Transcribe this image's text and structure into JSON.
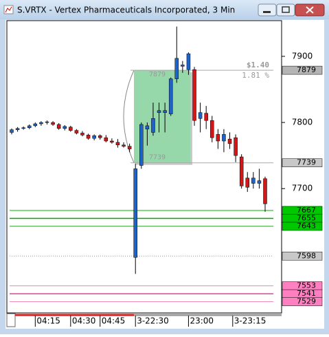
{
  "chart_data": {
    "type": "candlestick",
    "title": "S.VRTX - Vertex Pharmaceuticals Incorporated, 3 Min",
    "up_color": "#1e64c8",
    "down_color": "#d01818",
    "open": [
      7785,
      7789,
      7791,
      7792,
      7795,
      7798,
      7800,
      7800,
      7797,
      7791,
      7793,
      7788,
      7784,
      7781,
      7776,
      7780,
      7777,
      7772,
      7770,
      7766,
      7764,
      7596,
      7735,
      7790,
      7785,
      7815,
      7815,
      7813,
      7866,
      7885,
      7880,
      7880,
      7806,
      7814,
      7803,
      7782,
      7772,
      7775,
      7777,
      7748,
      7716,
      7708,
      7708,
      7715
    ],
    "high": [
      7791,
      7793,
      7794,
      7797,
      7800,
      7802,
      7803,
      7802,
      7799,
      7796,
      7795,
      7790,
      7787,
      7783,
      7782,
      7782,
      7781,
      7776,
      7775,
      7770,
      7768,
      7738,
      7800,
      7800,
      7830,
      7830,
      7830,
      7868,
      7945,
      7893,
      7906,
      7884,
      7830,
      7825,
      7810,
      7790,
      7790,
      7785,
      7782,
      7752,
      7725,
      7725,
      7730,
      7718
    ],
    "low": [
      7782,
      7786,
      7789,
      7790,
      7793,
      7795,
      7797,
      7795,
      7789,
      7788,
      7786,
      7782,
      7779,
      7774,
      7773,
      7774,
      7770,
      7768,
      7762,
      7762,
      7755,
      7571,
      7730,
      7765,
      7780,
      7785,
      7785,
      7810,
      7860,
      7875,
      7872,
      7795,
      7785,
      7790,
      7770,
      7760,
      7755,
      7760,
      7740,
      7700,
      7695,
      7700,
      7700,
      7665
    ],
    "close": [
      7789,
      7791,
      7792,
      7795,
      7798,
      7800,
      7801,
      7797,
      7791,
      7794,
      7788,
      7784,
      7781,
      7776,
      7780,
      7777,
      7772,
      7770,
      7766,
      7764,
      7760,
      7730,
      7797,
      7795,
      7806,
      7818,
      7818,
      7866,
      7897,
      7887,
      7904,
      7803,
      7815,
      7803,
      7777,
      7772,
      7782,
      7768,
      7750,
      7704,
      7702,
      7716,
      7712,
      7677
    ],
    "ylim": [
      7512,
      7954
    ],
    "yticks": [
      7900,
      7800,
      7700
    ],
    "xticks": [
      {
        "value": 4,
        "label": "04:15"
      },
      {
        "value": 10,
        "label": "04:30"
      },
      {
        "value": 15,
        "label": "04:45"
      },
      {
        "value": 21,
        "label": "3-22:30"
      },
      {
        "value": 30,
        "label": "23:00"
      },
      {
        "value": 37.5,
        "label": "3-23:15"
      }
    ],
    "levels": [
      {
        "value": 7879,
        "color": "#a8a8a8",
        "box": "#b4b4b4",
        "span": "right"
      },
      {
        "value": 7739,
        "color": "#a8a8a8",
        "box": "#c8c8c8",
        "span": "right"
      },
      {
        "value": 7667,
        "color": "#00b000",
        "box": "#00c800",
        "span": "full"
      },
      {
        "value": 7655,
        "color": "#00a800",
        "box": "#00c800",
        "span": "full"
      },
      {
        "value": 7643,
        "color": "#00b000",
        "box": "#00c800",
        "span": "full"
      },
      {
        "value": 7598,
        "color": "#9a9a9a",
        "box": "#c8c8c8",
        "span": "full"
      },
      {
        "value": 7553,
        "color": "#f080b8",
        "box": "#ff80c0",
        "span": "full"
      },
      {
        "value": 7541,
        "color": "#e040a0",
        "box": "#ff80c0",
        "span": "full"
      },
      {
        "value": 7529,
        "color": "#f080b8",
        "box": "#ff80c0",
        "span": "full"
      }
    ],
    "annotation": {
      "values": [
        1.4,
        1.81
      ],
      "value_labels": [
        "$1.40",
        "1.81 %"
      ]
    }
  }
}
